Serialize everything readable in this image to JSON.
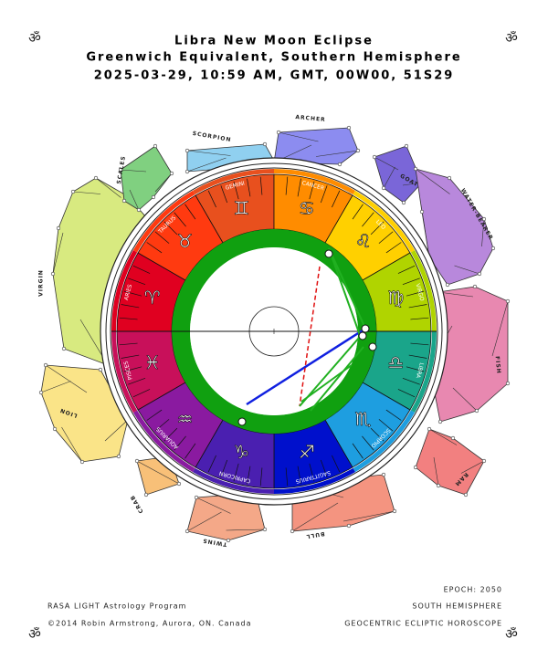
{
  "header": {
    "title": "Libra New Moon Eclipse",
    "subtitle": "Greenwich Equivalent, Southern Hemisphere",
    "details": "2025-03-29, 10:59 AM, GMT,  00W00, 51S29"
  },
  "corner_symbol": "ॐ",
  "zodiac": [
    {
      "name": "GEMINI",
      "glyph": "♊",
      "color": "#e8501e"
    },
    {
      "name": "CANCER",
      "glyph": "♋",
      "color": "#ff8c00"
    },
    {
      "name": "LEO",
      "glyph": "♌",
      "color": "#ffd000"
    },
    {
      "name": "VIRGO",
      "glyph": "♍",
      "color": "#b0d400"
    },
    {
      "name": "LIBRA",
      "glyph": "♎",
      "color": "#1aa58a"
    },
    {
      "name": "SCORPIO",
      "glyph": "♏",
      "color": "#1e9ee0"
    },
    {
      "name": "SAGITTARIUS",
      "glyph": "♐",
      "color": "#0010cc"
    },
    {
      "name": "CAPRICORN",
      "glyph": "♑",
      "color": "#4a1fb0"
    },
    {
      "name": "AQUARIUS",
      "glyph": "♒",
      "color": "#8a1aa0"
    },
    {
      "name": "PISCES",
      "glyph": "♓",
      "color": "#c8105a"
    },
    {
      "name": "ARIES",
      "glyph": "♈",
      "color": "#e00020"
    },
    {
      "name": "TAURUS",
      "glyph": "♉",
      "color": "#ff3a10"
    }
  ],
  "constellations": [
    {
      "name": "VIRGIN",
      "color": "#d8ea80"
    },
    {
      "name": "SCALES",
      "color": "#80d080"
    },
    {
      "name": "SCORPION",
      "color": "#90d0f0"
    },
    {
      "name": "ARCHER",
      "color": "#8c8cf0"
    },
    {
      "name": "GOAT",
      "color": "#7a66d8"
    },
    {
      "name": "WATER-BEARER",
      "color": "#b888dc"
    },
    {
      "name": "FISH",
      "color": "#e888b0"
    },
    {
      "name": "RAM",
      "color": "#f28080"
    },
    {
      "name": "BULL",
      "color": "#f49480"
    },
    {
      "name": "TWINS",
      "color": "#f4a888"
    },
    {
      "name": "CRAB",
      "color": "#f8c078"
    },
    {
      "name": "LION",
      "color": "#fae488"
    }
  ],
  "footer": {
    "epoch": "EPOCH: 2050",
    "program": "RASA LIGHT Astrology Program",
    "hemisphere": "SOUTH HEMISPHERE",
    "copyright": "©2014 Robin Armstrong, Aurora, ON. Canada",
    "mode": "GEOCENTRIC ECLIPTIC HOROSCOPE"
  }
}
